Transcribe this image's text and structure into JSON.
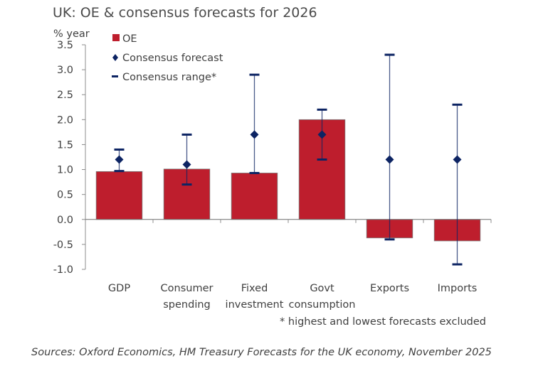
{
  "chart_data": {
    "type": "bar",
    "title": "UK: OE & consensus forecasts for 2026",
    "ylabel": "% year",
    "xlabel": "",
    "ylim": [
      -1.0,
      3.5
    ],
    "yticks": [
      "3.5",
      "3.0",
      "2.5",
      "2.0",
      "1.5",
      "1.0",
      "0.5",
      "0.0",
      "-0.5",
      "-1.0"
    ],
    "ytick_values": [
      3.5,
      3.0,
      2.5,
      2.0,
      1.5,
      1.0,
      0.5,
      0.0,
      -0.5,
      -1.0
    ],
    "categories": [
      [
        "GDP"
      ],
      [
        "Consumer",
        "spending"
      ],
      [
        "Fixed",
        "investment"
      ],
      [
        "Govt",
        "consumption"
      ],
      [
        "Exports"
      ],
      [
        "Imports"
      ]
    ],
    "series": [
      {
        "name": "OE",
        "kind": "bar",
        "color": "#be1e2d",
        "values": [
          0.96,
          1.01,
          0.93,
          2.0,
          -0.37,
          -0.43
        ]
      },
      {
        "name": "Consensus forecast",
        "kind": "marker",
        "color": "#0d2463",
        "values": [
          1.2,
          1.1,
          1.7,
          1.7,
          1.2,
          1.2
        ]
      },
      {
        "name": "Consensus range*",
        "kind": "range",
        "color": "#0d2463",
        "high": [
          1.4,
          1.7,
          2.9,
          2.2,
          3.3,
          2.3
        ],
        "low": [
          0.97,
          0.7,
          0.93,
          1.2,
          -0.4,
          -0.9
        ]
      }
    ],
    "legend": {
      "placement": "top-left",
      "items": [
        "OE",
        "Consensus forecast",
        "Consensus range*"
      ]
    },
    "grid": false,
    "footnote": "* highest and lowest forecasts excluded",
    "source": "Sources: Oxford Economics, HM Treasury Forecasts for the UK economy, November 2025"
  }
}
